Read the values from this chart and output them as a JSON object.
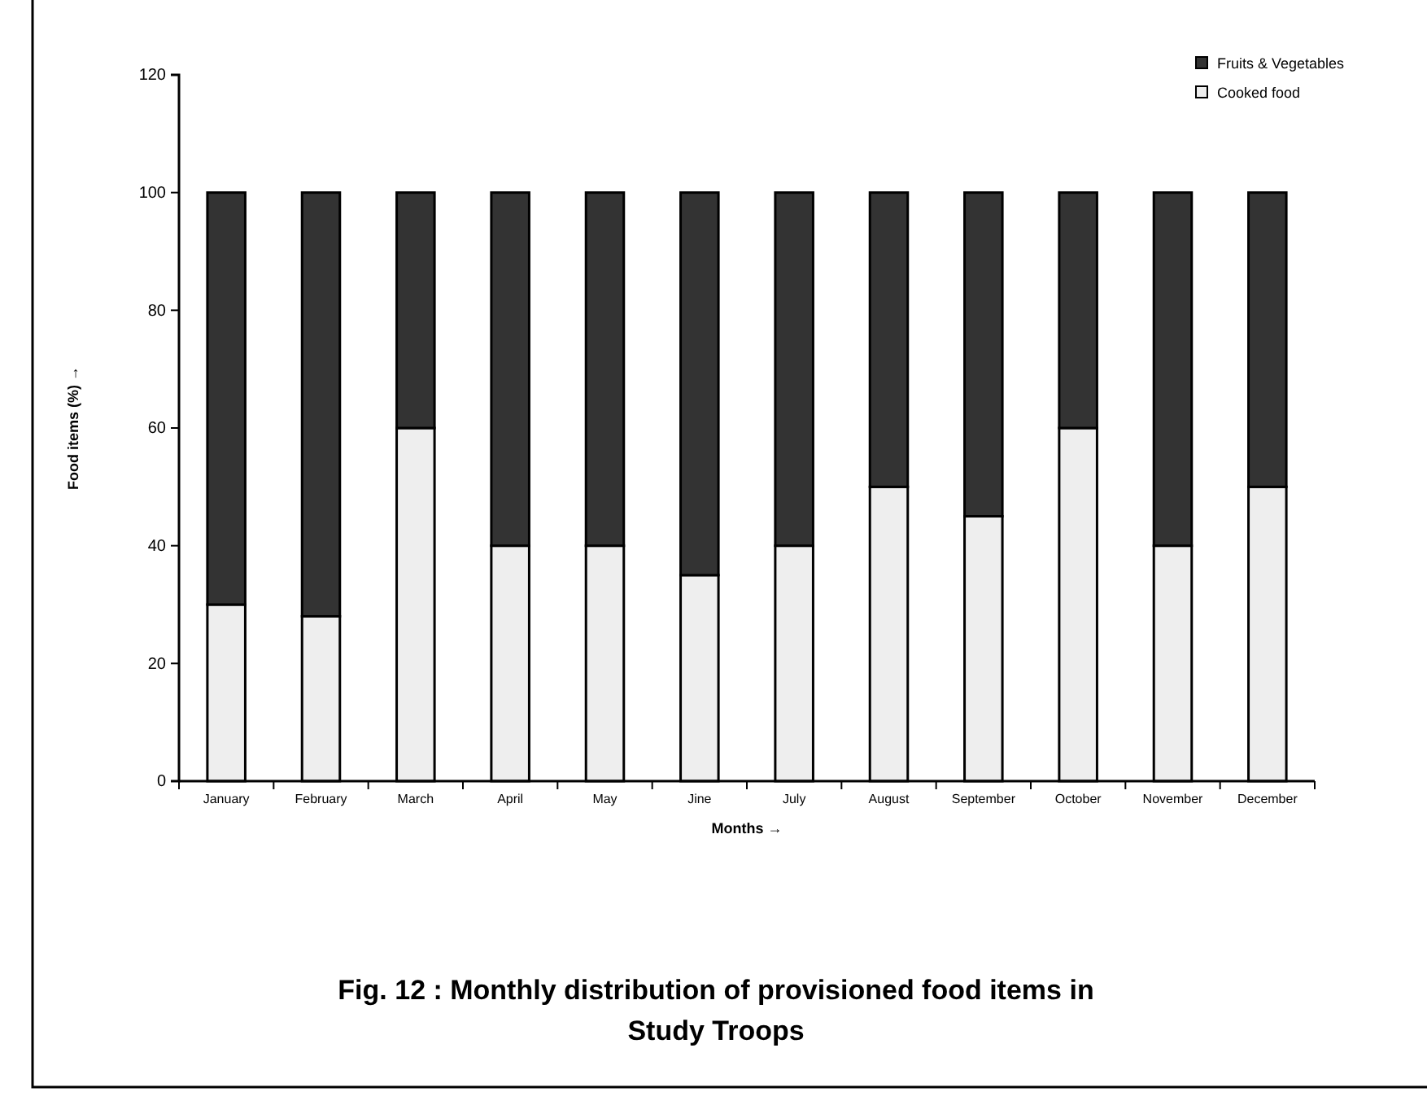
{
  "chart_data": {
    "type": "bar",
    "stacked": true,
    "title": "Fig. 12 : Monthly distribution of provisioned food items in Study Troops",
    "xlabel": "Months →",
    "ylabel": "Food items (%) →",
    "categories": [
      "January",
      "February",
      "March",
      "April",
      "May",
      "Jine",
      "July",
      "August",
      "September",
      "October",
      "November",
      "December"
    ],
    "series": [
      {
        "name": "Cooked food",
        "color": "#eeeeee",
        "values": [
          30,
          28,
          60,
          40,
          40,
          35,
          40,
          50,
          45,
          60,
          40,
          50
        ]
      },
      {
        "name": "Fruits & Vegetables",
        "color": "#333333",
        "values": [
          70,
          72,
          40,
          60,
          60,
          65,
          60,
          50,
          55,
          40,
          60,
          50
        ]
      }
    ],
    "ylim": [
      0,
      120
    ],
    "yticks": [
      0,
      20,
      40,
      60,
      80,
      100,
      120
    ],
    "grid": false,
    "legend": "top right"
  }
}
